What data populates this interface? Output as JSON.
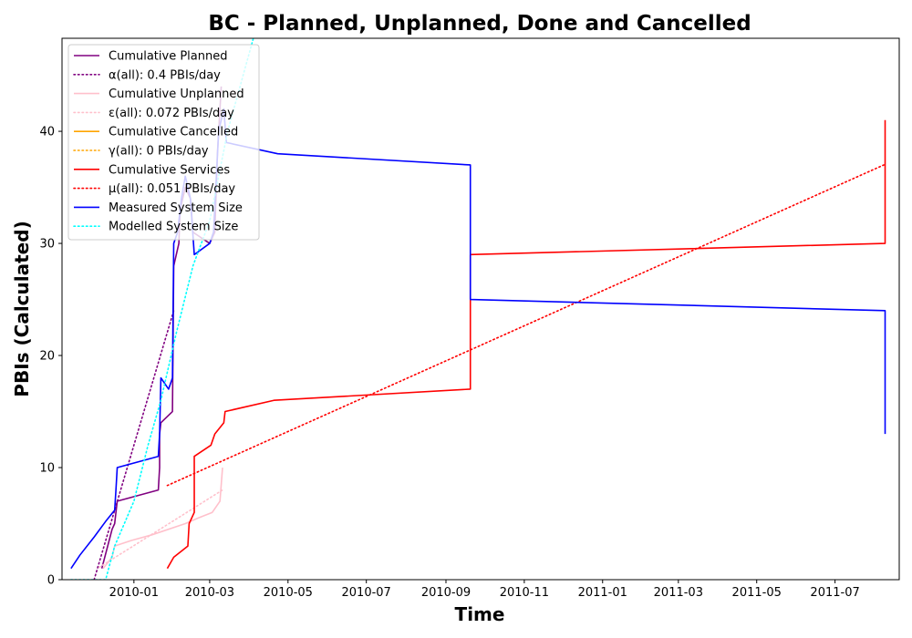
{
  "chart_data": {
    "type": "line",
    "title": "BC - Planned, Unplanned, Done  and Cancelled",
    "xlabel": "Time",
    "ylabel": "PBIs (Calculated)",
    "x_axis_type": "date",
    "xlim": [
      "2009-11-06",
      "2011-08-20"
    ],
    "ylim": [
      0,
      48.3
    ],
    "x_ticks": [
      "2010-01-01",
      "2010-03-01",
      "2010-05-01",
      "2010-07-01",
      "2010-09-01",
      "2010-11-01",
      "2011-01-01",
      "2011-03-01",
      "2011-05-01",
      "2011-07-01"
    ],
    "x_tick_labels": [
      "2010-01",
      "2010-03",
      "2010-05",
      "2010-07",
      "2010-09",
      "2010-11",
      "2011-01",
      "2011-03",
      "2011-05",
      "2011-07"
    ],
    "y_ticks": [
      0,
      10,
      20,
      30,
      40
    ],
    "y_tick_labels": [
      "0",
      "10",
      "20",
      "30",
      "40"
    ],
    "grid": false,
    "legend_position": "top-left",
    "series": [
      {
        "name": "Cumulative Planned",
        "color": "#800080",
        "style": "solid",
        "points": [
          [
            "2009-12-07",
            1
          ],
          [
            "2009-12-15",
            4.5
          ],
          [
            "2009-12-17",
            5
          ],
          [
            "2009-12-18",
            6
          ],
          [
            "2009-12-19",
            7
          ],
          [
            "2010-01-20",
            8
          ],
          [
            "2010-01-21",
            10
          ],
          [
            "2010-01-21",
            13
          ],
          [
            "2010-01-22",
            14
          ],
          [
            "2010-01-31",
            15
          ],
          [
            "2010-02-01",
            28
          ],
          [
            "2010-02-05",
            30
          ],
          [
            "2010-02-06",
            33
          ],
          [
            "2010-02-10",
            35
          ],
          [
            "2010-02-14",
            34
          ],
          [
            "2010-02-16",
            31
          ],
          [
            "2010-03-01",
            30
          ],
          [
            "2010-03-05",
            31
          ],
          [
            "2010-03-07",
            38
          ],
          [
            "2010-03-10",
            44
          ]
        ]
      },
      {
        "name": "α(all): 0.4 PBIs/day",
        "color": "#800080",
        "style": "dotted",
        "points": [
          [
            "2009-12-01",
            0
          ],
          [
            "2010-02-01",
            24
          ]
        ]
      },
      {
        "name": "Cumulative Unplanned",
        "color": "#ffc0cb",
        "style": "solid",
        "points": [
          [
            "2009-12-08",
            1
          ],
          [
            "2009-12-15",
            2
          ],
          [
            "2009-12-17",
            3
          ],
          [
            "2009-12-30",
            3.5
          ],
          [
            "2010-01-15",
            4
          ],
          [
            "2010-02-10",
            5
          ],
          [
            "2010-02-20",
            5.5
          ],
          [
            "2010-03-03",
            6
          ],
          [
            "2010-03-09",
            7
          ],
          [
            "2010-03-11",
            10
          ]
        ]
      },
      {
        "name": "ε(all): 0.072 PBIs/day",
        "color": "#ffc0cb",
        "style": "dotted",
        "points": [
          [
            "2009-12-05",
            1.1
          ],
          [
            "2010-03-11",
            8
          ]
        ]
      },
      {
        "name": "Cumulative Cancelled",
        "color": "#ffa500",
        "style": "solid",
        "points": []
      },
      {
        "name": "γ(all): 0 PBIs/day",
        "color": "#ffa500",
        "style": "dotted",
        "points": []
      },
      {
        "name": "Cumulative Services",
        "color": "#ff0000",
        "style": "solid",
        "points": [
          [
            "2010-01-27",
            1
          ],
          [
            "2010-02-01",
            2
          ],
          [
            "2010-02-12",
            3
          ],
          [
            "2010-02-13",
            5
          ],
          [
            "2010-02-17",
            6
          ],
          [
            "2010-02-17",
            11
          ],
          [
            "2010-03-02",
            12
          ],
          [
            "2010-03-05",
            13
          ],
          [
            "2010-03-12",
            14
          ],
          [
            "2010-03-13",
            15
          ],
          [
            "2010-04-20",
            16
          ],
          [
            "2010-09-20",
            17
          ],
          [
            "2010-09-20",
            29
          ],
          [
            "2011-08-09",
            30
          ],
          [
            "2011-08-09",
            41
          ]
        ]
      },
      {
        "name": "μ(all): 0.051 PBIs/day",
        "color": "#ff0000",
        "style": "dotted",
        "points": [
          [
            "2010-01-27",
            8.4
          ],
          [
            "2011-08-08",
            37
          ]
        ]
      },
      {
        "name": "Measured System Size",
        "color": "#0000ff",
        "style": "solid",
        "points": [
          [
            "2009-11-13",
            1
          ],
          [
            "2009-11-20",
            2.2
          ],
          [
            "2009-12-01",
            3.8
          ],
          [
            "2009-12-10",
            5.2
          ],
          [
            "2009-12-17",
            6.2
          ],
          [
            "2009-12-18",
            8
          ],
          [
            "2009-12-19",
            10
          ],
          [
            "2010-01-20",
            11
          ],
          [
            "2010-01-21",
            13
          ],
          [
            "2010-01-22",
            18
          ],
          [
            "2010-01-28",
            17
          ],
          [
            "2010-01-31",
            18
          ],
          [
            "2010-02-01",
            30
          ],
          [
            "2010-02-04",
            31
          ],
          [
            "2010-02-07",
            34
          ],
          [
            "2010-02-10",
            36
          ],
          [
            "2010-02-14",
            34
          ],
          [
            "2010-02-17",
            29
          ],
          [
            "2010-03-01",
            30
          ],
          [
            "2010-03-04",
            31
          ],
          [
            "2010-03-08",
            40
          ],
          [
            "2010-03-12",
            42
          ],
          [
            "2010-03-14",
            39
          ],
          [
            "2010-04-23",
            38
          ],
          [
            "2010-09-20",
            37
          ],
          [
            "2010-09-20",
            25
          ],
          [
            "2011-08-09",
            24
          ],
          [
            "2011-08-09",
            13
          ]
        ]
      },
      {
        "name": "Modelled System Size",
        "color": "#00ffff",
        "style": "dotted",
        "points": [
          [
            "2009-11-13",
            0
          ],
          [
            "2009-12-10",
            0
          ],
          [
            "2009-12-17",
            3
          ],
          [
            "2010-01-01",
            7
          ],
          [
            "2010-01-12",
            12
          ],
          [
            "2010-01-22",
            16
          ],
          [
            "2010-02-03",
            22
          ],
          [
            "2010-02-16",
            28
          ],
          [
            "2010-03-01",
            32
          ],
          [
            "2010-03-15",
            40
          ],
          [
            "2010-04-04",
            48.3
          ]
        ]
      }
    ]
  }
}
